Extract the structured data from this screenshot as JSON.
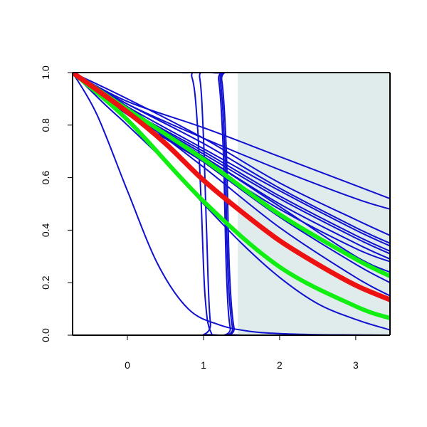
{
  "chart_data": {
    "type": "line",
    "title": "",
    "xlabel": "",
    "ylabel": "",
    "xlim": [
      -0.72,
      3.45
    ],
    "ylim": [
      0.0,
      1.0
    ],
    "grid": false,
    "x_ticks": [
      0,
      1,
      2,
      3
    ],
    "y_ticks": [
      0.0,
      0.2,
      0.4,
      0.6,
      0.8,
      1.0
    ],
    "x_tick_labels": [
      "0",
      "1",
      "2",
      "3"
    ],
    "y_tick_labels": [
      "0.0",
      "0.2",
      "0.4",
      "0.6",
      "0.8",
      "1.0"
    ],
    "shaded_region": {
      "x_start": 1.45,
      "x_end": 3.45,
      "color": "#e0ecec"
    },
    "colors": {
      "blue": "#1010d0",
      "red": "#ee1111",
      "green": "#11ee11",
      "axis": "#000000"
    },
    "series": [
      {
        "color": "#1010d0",
        "width": 2,
        "x": [
          -0.72,
          -0.4,
          0,
          0.4,
          0.8,
          1.2,
          1.6,
          2.0,
          2.5,
          3.0,
          3.45
        ],
        "y": [
          1.0,
          0.84,
          0.55,
          0.27,
          0.1,
          0.04,
          0.015,
          0.006,
          0.002,
          0.001,
          0.0
        ]
      },
      {
        "color": "#1010d0",
        "width": 2,
        "x": [
          -0.72,
          0.7,
          0.85,
          0.92,
          0.97,
          1.02,
          1.1,
          1.3,
          3.45
        ],
        "y": [
          1.0,
          1.0,
          0.98,
          0.8,
          0.5,
          0.15,
          0.01,
          0.0,
          0.0
        ]
      },
      {
        "color": "#1010d0",
        "width": 2,
        "x": [
          -0.72,
          0.85,
          0.95,
          1.0,
          1.04,
          1.09,
          1.2,
          3.45
        ],
        "y": [
          1.0,
          1.0,
          0.98,
          0.75,
          0.4,
          0.05,
          0.0,
          0.0
        ]
      },
      {
        "color": "#1010d0",
        "width": 2,
        "x": [
          -0.72,
          1.1,
          1.2,
          1.26,
          1.3,
          1.35,
          1.45,
          3.45
        ],
        "y": [
          1.0,
          1.0,
          0.97,
          0.7,
          0.25,
          0.03,
          0.0,
          0.0
        ]
      },
      {
        "color": "#1010d0",
        "width": 2,
        "x": [
          -0.72,
          1.12,
          1.22,
          1.28,
          1.32,
          1.38,
          1.48,
          3.45
        ],
        "y": [
          1.0,
          1.0,
          0.97,
          0.7,
          0.25,
          0.03,
          0.0,
          0.0
        ]
      },
      {
        "color": "#1010d0",
        "width": 2,
        "x": [
          -0.72,
          1.14,
          1.24,
          1.3,
          1.34,
          1.4,
          1.5,
          3.45
        ],
        "y": [
          1.0,
          1.0,
          0.97,
          0.7,
          0.25,
          0.03,
          0.0,
          0.0
        ]
      },
      {
        "color": "#1010d0",
        "width": 2,
        "x": [
          -0.72,
          -0.3,
          0,
          0.5,
          1.0,
          1.5,
          2.0,
          2.5,
          3.0,
          3.45
        ],
        "y": [
          1.0,
          0.88,
          0.8,
          0.66,
          0.5,
          0.35,
          0.22,
          0.12,
          0.06,
          0.02
        ]
      },
      {
        "color": "#1010d0",
        "width": 2,
        "x": [
          -0.72,
          0,
          1,
          2,
          3,
          3.45
        ],
        "y": [
          1.0,
          0.9,
          0.75,
          0.58,
          0.44,
          0.38
        ]
      },
      {
        "color": "#1010d0",
        "width": 2,
        "x": [
          -0.72,
          0,
          1,
          2,
          3,
          3.45
        ],
        "y": [
          1.0,
          0.88,
          0.73,
          0.56,
          0.41,
          0.35
        ]
      },
      {
        "color": "#1010d0",
        "width": 2,
        "x": [
          -0.72,
          0,
          1,
          2,
          3,
          3.45
        ],
        "y": [
          1.0,
          0.87,
          0.71,
          0.55,
          0.4,
          0.34
        ]
      },
      {
        "color": "#1010d0",
        "width": 2,
        "x": [
          -0.72,
          0,
          1,
          2,
          3,
          3.45
        ],
        "y": [
          1.0,
          0.86,
          0.7,
          0.53,
          0.38,
          0.32
        ]
      },
      {
        "color": "#1010d0",
        "width": 2,
        "x": [
          -0.72,
          0,
          1,
          2,
          3,
          3.45
        ],
        "y": [
          1.0,
          0.86,
          0.69,
          0.52,
          0.37,
          0.31
        ]
      },
      {
        "color": "#1010d0",
        "width": 2,
        "x": [
          -0.72,
          0,
          1,
          2,
          3,
          3.45
        ],
        "y": [
          1.0,
          0.85,
          0.68,
          0.5,
          0.35,
          0.29
        ]
      },
      {
        "color": "#1010d0",
        "width": 2,
        "x": [
          -0.72,
          0,
          1,
          2,
          3,
          3.45
        ],
        "y": [
          1.0,
          0.84,
          0.66,
          0.48,
          0.33,
          0.28
        ]
      },
      {
        "color": "#1010d0",
        "width": 2,
        "x": [
          -0.72,
          0,
          1,
          2,
          3,
          3.45
        ],
        "y": [
          1.0,
          0.86,
          0.68,
          0.49,
          0.3,
          0.24
        ]
      },
      {
        "color": "#1010d0",
        "width": 2,
        "x": [
          -0.72,
          0,
          1,
          2,
          3,
          3.45
        ],
        "y": [
          1.0,
          0.87,
          0.66,
          0.45,
          0.27,
          0.2
        ]
      },
      {
        "color": "#1010d0",
        "width": 2,
        "x": [
          -0.72,
          0,
          1,
          2,
          3,
          3.45
        ],
        "y": [
          1.0,
          0.86,
          0.64,
          0.41,
          0.22,
          0.15
        ]
      },
      {
        "color": "#1010d0",
        "width": 2,
        "x": [
          -0.72,
          0,
          1,
          2,
          3,
          3.45
        ],
        "y": [
          1.0,
          0.88,
          0.75,
          0.63,
          0.52,
          0.48
        ]
      },
      {
        "color": "#1010d0",
        "width": 2,
        "x": [
          -0.72,
          0,
          1,
          2,
          3,
          3.45
        ],
        "y": [
          1.0,
          0.89,
          0.79,
          0.68,
          0.57,
          0.52
        ]
      },
      {
        "color": "#1010d0",
        "width": 2,
        "x": [
          -0.72,
          0,
          1,
          2,
          3,
          3.45
        ],
        "y": [
          1.0,
          0.85,
          0.66,
          0.46,
          0.29,
          0.23
        ]
      },
      {
        "color": "#11ee11",
        "width": 6,
        "x": [
          -0.72,
          0,
          1,
          2,
          3,
          3.45
        ],
        "y": [
          1.0,
          0.82,
          0.51,
          0.26,
          0.11,
          0.065
        ]
      },
      {
        "color": "#11ee11",
        "width": 6,
        "x": [
          -0.72,
          0,
          1,
          2,
          3,
          3.45
        ],
        "y": [
          1.0,
          0.86,
          0.67,
          0.46,
          0.29,
          0.225
        ]
      },
      {
        "color": "#ee1111",
        "width": 7,
        "x": [
          -0.72,
          0,
          0.5,
          1,
          1.5,
          2,
          2.5,
          3,
          3.45
        ],
        "y": [
          1.0,
          0.85,
          0.73,
          0.59,
          0.47,
          0.36,
          0.27,
          0.19,
          0.135
        ]
      }
    ]
  }
}
